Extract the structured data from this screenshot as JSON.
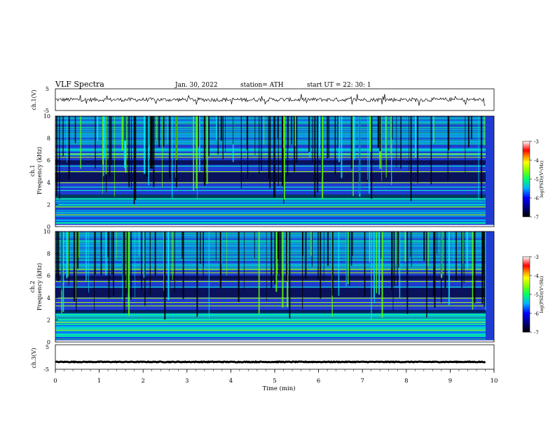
{
  "header": {
    "title": "VLF  Spectra",
    "date": "Jan. 30, 2022",
    "station": "station= ATH",
    "start": "start  UT  =   22: 30: 1"
  },
  "chart_data": [
    {
      "type": "line",
      "name": "ch1-waveform",
      "ylabel": "ch.1(V)",
      "ylim": [
        -5,
        5
      ],
      "yticks": [
        "5",
        "-5"
      ],
      "x_range_min": [
        0,
        9.8
      ],
      "baseline": 0,
      "noise_amplitude": 0.9
    },
    {
      "type": "heatmap",
      "name": "ch1-spectrogram",
      "ylabel": "ch.1\nFrequency (kHz)",
      "ylabel_line1": "ch.1",
      "ylabel_line2": "Frequency (kHz)",
      "ylim": [
        0,
        10
      ],
      "yticks": [
        "0",
        "2",
        "4",
        "6",
        "8",
        "10"
      ],
      "colorbar": {
        "label": "log(PSD)(V²/Hz)",
        "range": [
          -7,
          -3
        ],
        "ticks": [
          "-3",
          "-4",
          "-5",
          "-6",
          "-7"
        ]
      }
    },
    {
      "type": "heatmap",
      "name": "ch2-spectrogram",
      "ylabel": "ch.2\nFrequency (kHz)",
      "ylabel_line1": "ch.2",
      "ylabel_line2": "Frequency (kHz)",
      "ylim": [
        0,
        10
      ],
      "yticks": [
        "0",
        "2",
        "4",
        "6",
        "8",
        "10"
      ],
      "colorbar": {
        "label": "log(PSD)(V²/Hz)",
        "range": [
          -7,
          -3
        ],
        "ticks": [
          "-3",
          "-4",
          "-5",
          "-6",
          "-7"
        ]
      }
    },
    {
      "type": "line",
      "name": "ch3-waveform",
      "ylabel": "ch.3(V)",
      "ylim": [
        -5,
        5
      ],
      "yticks": [
        "5",
        "-5"
      ],
      "x_range_min": [
        0,
        9.8
      ],
      "baseline": -2,
      "noise_amplitude": 0.15
    }
  ],
  "xaxis": {
    "label": "Time  (min)",
    "range": [
      0,
      10
    ],
    "ticks": [
      "0",
      "1",
      "2",
      "3",
      "4",
      "5",
      "6",
      "7",
      "8",
      "9",
      "10"
    ]
  },
  "colors": {
    "spectro_base": "#1e3cd2",
    "colormap": [
      "#000000",
      "#0000c8",
      "#0050ff",
      "#00c8ff",
      "#00ff96",
      "#64ff00",
      "#ffff00",
      "#ff9600",
      "#ff0000",
      "#ffffff"
    ]
  }
}
